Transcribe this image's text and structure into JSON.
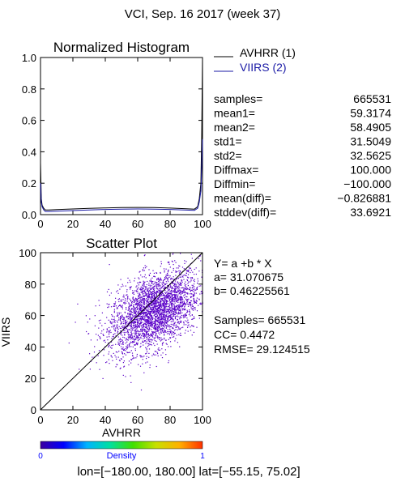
{
  "header": {
    "title": "VCI,  Sep. 16 2017 (week 37)"
  },
  "histogram": {
    "chart_data": {
      "type": "line",
      "title": "Normalized Histogram",
      "xlim": [
        0,
        100
      ],
      "ylim": [
        0.0,
        1.0
      ],
      "x_ticks": [
        "0",
        "20",
        "40",
        "60",
        "80",
        "100"
      ],
      "y_ticks": [
        "0.0",
        "0.2",
        "0.4",
        "0.6",
        "0.8",
        "1.0"
      ],
      "legend": "right",
      "series": [
        {
          "name": "AVHRR (1)",
          "color": "#000000",
          "points": [
            [
              0,
              0.33
            ],
            [
              0.5,
              0.1
            ],
            [
              1,
              0.06
            ],
            [
              2,
              0.04
            ],
            [
              3,
              0.03
            ],
            [
              5,
              0.03
            ],
            [
              10,
              0.032
            ],
            [
              20,
              0.036
            ],
            [
              30,
              0.04
            ],
            [
              40,
              0.043
            ],
            [
              50,
              0.045
            ],
            [
              60,
              0.046
            ],
            [
              70,
              0.045
            ],
            [
              80,
              0.042
            ],
            [
              90,
              0.037
            ],
            [
              95,
              0.035
            ],
            [
              97,
              0.05
            ],
            [
              98,
              0.1
            ],
            [
              99,
              0.2
            ],
            [
              99.5,
              0.5
            ],
            [
              100,
              0.99
            ]
          ]
        },
        {
          "name": "VIIRS (2)",
          "color": "#1a1aa6",
          "points": [
            [
              0,
              0.2
            ],
            [
              0.5,
              0.08
            ],
            [
              1,
              0.05
            ],
            [
              2,
              0.03
            ],
            [
              3,
              0.02
            ],
            [
              5,
              0.02
            ],
            [
              10,
              0.022
            ],
            [
              20,
              0.026
            ],
            [
              30,
              0.03
            ],
            [
              40,
              0.033
            ],
            [
              50,
              0.035
            ],
            [
              60,
              0.036
            ],
            [
              70,
              0.035
            ],
            [
              80,
              0.033
            ],
            [
              90,
              0.029
            ],
            [
              95,
              0.027
            ],
            [
              97,
              0.04
            ],
            [
              98,
              0.08
            ],
            [
              99,
              0.15
            ],
            [
              99.5,
              0.3
            ],
            [
              100,
              0.48
            ]
          ]
        }
      ]
    }
  },
  "stats": [
    {
      "label": "samples=",
      "value": "665531"
    },
    {
      "label": "mean1=",
      "value": "59.3174"
    },
    {
      "label": "mean2=",
      "value": "58.4905"
    },
    {
      "label": "std1=",
      "value": "31.5049"
    },
    {
      "label": "std2=",
      "value": "32.5625"
    },
    {
      "label": "Diffmax=",
      "value": "100.000"
    },
    {
      "label": "Diffmin=",
      "value": "−100.000"
    },
    {
      "label": "mean(diff)=",
      "value": "−0.826881"
    },
    {
      "label": "stddev(diff)=",
      "value": "33.6921"
    }
  ],
  "scatter": {
    "chart_data": {
      "type": "scatter",
      "title": "Scatter Plot",
      "xlabel": "AVHRR",
      "ylabel": "VIIRS",
      "xlim": [
        0,
        100
      ],
      "ylim": [
        0,
        100
      ],
      "x_ticks": [
        "0",
        "20",
        "40",
        "60",
        "80",
        "100"
      ],
      "y_ticks": [
        "0",
        "20",
        "40",
        "60",
        "80",
        "100"
      ],
      "one_to_one_line": true,
      "samples": 665531,
      "cloud": {
        "mean_x": 70,
        "mean_y": 63,
        "std_x": 14,
        "std_y": 13,
        "correlation": 0.45
      },
      "point_color": "#5a00c8"
    },
    "regression": {
      "equation": "Y= a +b * X",
      "a": "a= 31.070675",
      "b": "b= 0.46225561",
      "samples": "Samples= 665531",
      "cc": "CC=  0.4472",
      "rmse": "RMSE= 29.124515"
    }
  },
  "colorbar": {
    "label": "Density",
    "min_label": "0",
    "max_label": "1",
    "colors": [
      "#3c00a0",
      "#0000ff",
      "#00b4ff",
      "#00e0a0",
      "#40e000",
      "#c8e000",
      "#ffb000",
      "#ff3000"
    ]
  },
  "footer": {
    "text": "lon=[−180.00, 180.00] lat=[−55.15, 75.02]"
  }
}
